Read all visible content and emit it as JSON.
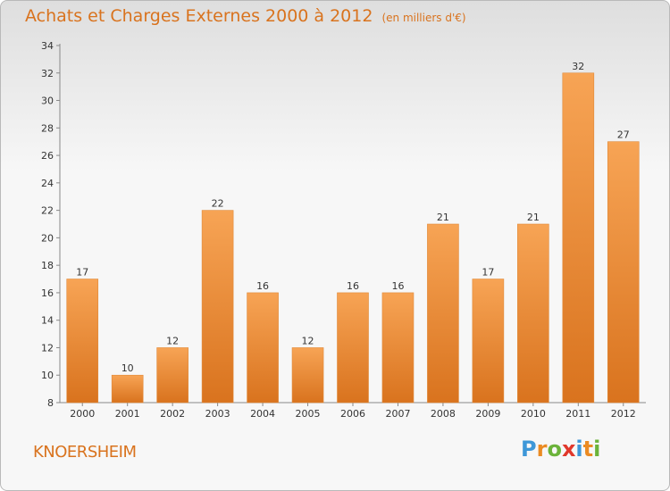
{
  "chart_data": {
    "type": "bar",
    "title": "Achats et Charges Externes 2000 à 2012",
    "unit_note": "(en milliers d'€)",
    "categories": [
      "2000",
      "2001",
      "2002",
      "2003",
      "2004",
      "2005",
      "2006",
      "2007",
      "2008",
      "2009",
      "2010",
      "2011",
      "2012"
    ],
    "values": [
      17,
      10,
      12,
      22,
      16,
      12,
      16,
      16,
      21,
      17,
      21,
      32,
      27
    ],
    "value_labels": [
      "17",
      "10",
      "12",
      "22",
      "16",
      "12",
      "16",
      "16",
      "21",
      "17",
      "21",
      "32",
      "27"
    ],
    "xlabel": "",
    "ylabel": "",
    "ylim": [
      8,
      34
    ],
    "yticks": [
      8,
      10,
      12,
      14,
      16,
      18,
      20,
      22,
      24,
      26,
      28,
      30,
      32,
      34
    ],
    "grid": false,
    "bar_color": "#f0922f"
  },
  "footer": {
    "town": "KNOERSHEIM",
    "logo_letters": [
      "P",
      "r",
      "o",
      "x",
      "i",
      "t",
      "i"
    ],
    "logo_colors": [
      "#3e97d8",
      "#eb8b23",
      "#6bb33a",
      "#e0382b",
      "#3e97d8",
      "#eb8b23",
      "#6bb33a"
    ]
  }
}
